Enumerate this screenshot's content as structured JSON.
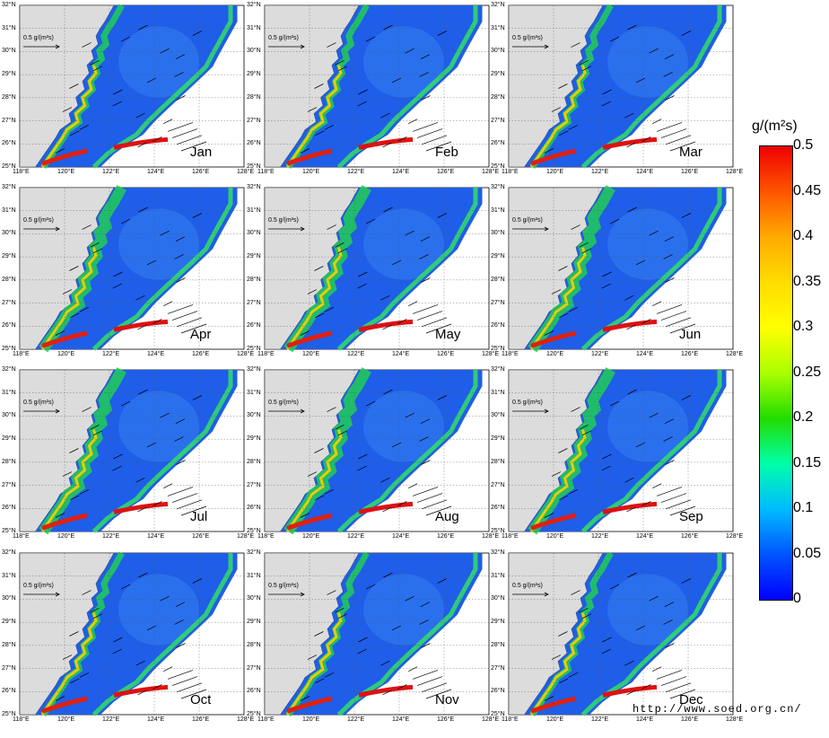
{
  "panels": [
    {
      "month": "Jan"
    },
    {
      "month": "Feb"
    },
    {
      "month": "Mar"
    },
    {
      "month": "Apr"
    },
    {
      "month": "May"
    },
    {
      "month": "Jun"
    },
    {
      "month": "Jul"
    },
    {
      "month": "Aug"
    },
    {
      "month": "Sep"
    },
    {
      "month": "Oct"
    },
    {
      "month": "Nov"
    },
    {
      "month": "Dec"
    }
  ],
  "lat_ticks": [
    "32°N",
    "31°N",
    "30°N",
    "29°N",
    "28°N",
    "27°N",
    "26°N",
    "25°N"
  ],
  "lon_ticks": [
    "118°E",
    "120°E",
    "122°E",
    "124°E",
    "126°E",
    "128°E"
  ],
  "scale_vector_label": "0.5 g/(m²s)",
  "colorbar": {
    "title": "g/(m²s)",
    "labels": [
      "0.5",
      "0.45",
      "0.4",
      "0.35",
      "0.3",
      "0.25",
      "0.2",
      "0.15",
      "0.1",
      "0.05",
      "0"
    ],
    "min": 0,
    "max": 0.5,
    "colors": [
      "#0000ff",
      "#00bbff",
      "#00ffaa",
      "#22dd00",
      "#ffff00",
      "#ffaa00",
      "#ee0000"
    ]
  },
  "watermark": "http://www.soed.org.cn/"
}
